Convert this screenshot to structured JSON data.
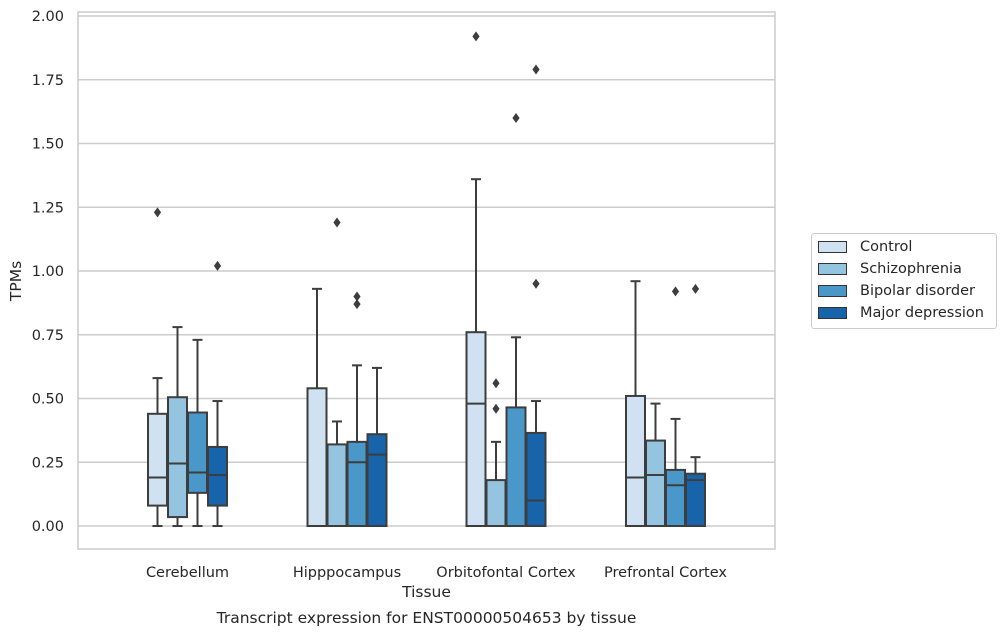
{
  "chart_data": {
    "type": "box",
    "title": "",
    "caption": "Transcript expression for ENST00000504653 by tissue",
    "xlabel": "Tissue",
    "ylabel": "TPMs",
    "ylim": [
      -0.09,
      2.02
    ],
    "yticks": [
      "0.00",
      "0.25",
      "0.50",
      "0.75",
      "1.00",
      "1.25",
      "1.50",
      "1.75",
      "2.00"
    ],
    "ytick_values": [
      0,
      0.25,
      0.5,
      0.75,
      1.0,
      1.25,
      1.5,
      1.75,
      2.0
    ],
    "grid": true,
    "legend_position": "right",
    "categories": [
      "Cerebellum",
      "Hipppocampus",
      "Orbitofontal Cortex",
      "Prefrontal Cortex"
    ],
    "series": [
      {
        "name": "Control",
        "color": "#d0e1f2",
        "boxes": [
          {
            "whisker_low": 0.0,
            "q1": 0.08,
            "median": 0.19,
            "q3": 0.44,
            "whisker_high": 0.58,
            "outliers": [
              1.23
            ]
          },
          {
            "whisker_low": 0.0,
            "q1": 0.0,
            "median": 0.0,
            "q3": 0.54,
            "whisker_high": 0.93,
            "outliers": []
          },
          {
            "whisker_low": 0.0,
            "q1": 0.0,
            "median": 0.48,
            "q3": 0.76,
            "whisker_high": 1.36,
            "outliers": [
              1.92
            ]
          },
          {
            "whisker_low": 0.0,
            "q1": 0.0,
            "median": 0.19,
            "q3": 0.51,
            "whisker_high": 0.96,
            "outliers": []
          }
        ]
      },
      {
        "name": "Schizophrenia",
        "color": "#94c4df",
        "boxes": [
          {
            "whisker_low": 0.0,
            "q1": 0.035,
            "median": 0.245,
            "q3": 0.505,
            "whisker_high": 0.78,
            "outliers": []
          },
          {
            "whisker_low": 0.0,
            "q1": 0.0,
            "median": 0.0,
            "q3": 0.32,
            "whisker_high": 0.41,
            "outliers": [
              1.19
            ]
          },
          {
            "whisker_low": 0.0,
            "q1": 0.0,
            "median": 0.0,
            "q3": 0.18,
            "whisker_high": 0.33,
            "outliers": [
              0.46,
              0.56
            ]
          },
          {
            "whisker_low": 0.0,
            "q1": 0.0,
            "median": 0.2,
            "q3": 0.335,
            "whisker_high": 0.48,
            "outliers": []
          }
        ]
      },
      {
        "name": "Bipolar disorder",
        "color": "#4a98c9",
        "boxes": [
          {
            "whisker_low": 0.0,
            "q1": 0.13,
            "median": 0.21,
            "q3": 0.445,
            "whisker_high": 0.73,
            "outliers": []
          },
          {
            "whisker_low": 0.0,
            "q1": 0.0,
            "median": 0.25,
            "q3": 0.33,
            "whisker_high": 0.63,
            "outliers": [
              0.87,
              0.9
            ]
          },
          {
            "whisker_low": 0.0,
            "q1": 0.0,
            "median": 0.0,
            "q3": 0.465,
            "whisker_high": 0.74,
            "outliers": [
              1.6
            ]
          },
          {
            "whisker_low": 0.0,
            "q1": 0.0,
            "median": 0.16,
            "q3": 0.22,
            "whisker_high": 0.42,
            "outliers": [
              0.92
            ]
          }
        ]
      },
      {
        "name": "Major depression",
        "color": "#1764ab",
        "boxes": [
          {
            "whisker_low": 0.0,
            "q1": 0.08,
            "median": 0.2,
            "q3": 0.31,
            "whisker_high": 0.49,
            "outliers": [
              1.02
            ]
          },
          {
            "whisker_low": 0.0,
            "q1": 0.0,
            "median": 0.28,
            "q3": 0.36,
            "whisker_high": 0.62,
            "outliers": []
          },
          {
            "whisker_low": 0.0,
            "q1": 0.0,
            "median": 0.1,
            "q3": 0.365,
            "whisker_high": 0.49,
            "outliers": [
              0.95,
              1.79
            ]
          },
          {
            "whisker_low": 0.0,
            "q1": 0.0,
            "median": 0.18,
            "q3": 0.205,
            "whisker_high": 0.27,
            "outliers": [
              0.93
            ]
          }
        ]
      }
    ]
  }
}
